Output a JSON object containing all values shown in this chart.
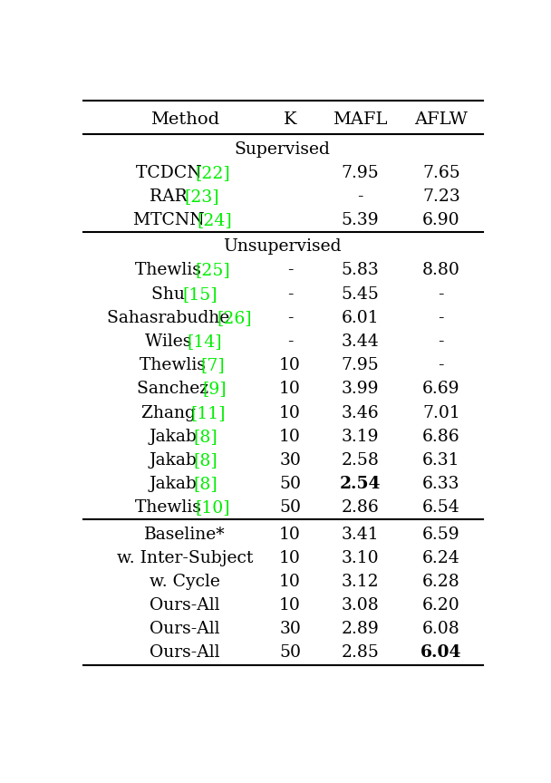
{
  "bg_color": "#ffffff",
  "header": [
    "Method",
    "K",
    "MAFL",
    "AFLW"
  ],
  "sections": [
    {
      "label": "Supervised",
      "rows": [
        {
          "method_parts": [
            {
              "text": "TCDCN ",
              "color": "black"
            },
            {
              "text": "[22]",
              "color": "#00ee00"
            }
          ],
          "K": "",
          "MAFL": "7.95",
          "AFLW": "7.65",
          "MAFL_bold": false,
          "AFLW_bold": false
        },
        {
          "method_parts": [
            {
              "text": "RAR ",
              "color": "black"
            },
            {
              "text": "[23]",
              "color": "#00ee00"
            }
          ],
          "K": "",
          "MAFL": "-",
          "AFLW": "7.23",
          "MAFL_bold": false,
          "AFLW_bold": false
        },
        {
          "method_parts": [
            {
              "text": "MTCNN ",
              "color": "black"
            },
            {
              "text": "[24]",
              "color": "#00ee00"
            }
          ],
          "K": "",
          "MAFL": "5.39",
          "AFLW": "6.90",
          "MAFL_bold": false,
          "AFLW_bold": false
        }
      ]
    },
    {
      "label": "Unsupervised",
      "rows": [
        {
          "method_parts": [
            {
              "text": "Thewlis ",
              "color": "black"
            },
            {
              "text": "[25]",
              "color": "#00ee00"
            }
          ],
          "K": "-",
          "MAFL": "5.83",
          "AFLW": "8.80",
          "MAFL_bold": false,
          "AFLW_bold": false
        },
        {
          "method_parts": [
            {
              "text": "Shu ",
              "color": "black"
            },
            {
              "text": "[15]",
              "color": "#00ee00"
            }
          ],
          "K": "-",
          "MAFL": "5.45",
          "AFLW": "-",
          "MAFL_bold": false,
          "AFLW_bold": false
        },
        {
          "method_parts": [
            {
              "text": "Sahasrabudhe ",
              "color": "black"
            },
            {
              "text": "[26]",
              "color": "#00ee00"
            }
          ],
          "K": "-",
          "MAFL": "6.01",
          "AFLW": "-",
          "MAFL_bold": false,
          "AFLW_bold": false
        },
        {
          "method_parts": [
            {
              "text": "Wiles ",
              "color": "black"
            },
            {
              "text": "[14]",
              "color": "#00ee00"
            }
          ],
          "K": "-",
          "MAFL": "3.44",
          "AFLW": "-",
          "MAFL_bold": false,
          "AFLW_bold": false
        },
        {
          "method_parts": [
            {
              "text": "Thewlis ",
              "color": "black"
            },
            {
              "text": "[7]",
              "color": "#00ee00"
            }
          ],
          "K": "10",
          "MAFL": "7.95",
          "AFLW": "-",
          "MAFL_bold": false,
          "AFLW_bold": false
        },
        {
          "method_parts": [
            {
              "text": "Sanchez ",
              "color": "black"
            },
            {
              "text": "[9]",
              "color": "#00ee00"
            }
          ],
          "K": "10",
          "MAFL": "3.99",
          "AFLW": "6.69",
          "MAFL_bold": false,
          "AFLW_bold": false
        },
        {
          "method_parts": [
            {
              "text": "Zhang ",
              "color": "black"
            },
            {
              "text": "[11]",
              "color": "#00ee00"
            }
          ],
          "K": "10",
          "MAFL": "3.46",
          "AFLW": "7.01",
          "MAFL_bold": false,
          "AFLW_bold": false
        },
        {
          "method_parts": [
            {
              "text": "Jakab ",
              "color": "black"
            },
            {
              "text": "[8]",
              "color": "#00ee00"
            }
          ],
          "K": "10",
          "MAFL": "3.19",
          "AFLW": "6.86",
          "MAFL_bold": false,
          "AFLW_bold": false
        },
        {
          "method_parts": [
            {
              "text": "Jakab ",
              "color": "black"
            },
            {
              "text": "[8]",
              "color": "#00ee00"
            }
          ],
          "K": "30",
          "MAFL": "2.58",
          "AFLW": "6.31",
          "MAFL_bold": false,
          "AFLW_bold": false
        },
        {
          "method_parts": [
            {
              "text": "Jakab ",
              "color": "black"
            },
            {
              "text": "[8]",
              "color": "#00ee00"
            }
          ],
          "K": "50",
          "MAFL": "2.54",
          "AFLW": "6.33",
          "MAFL_bold": true,
          "AFLW_bold": false
        },
        {
          "method_parts": [
            {
              "text": "Thewlis ",
              "color": "black"
            },
            {
              "text": "[10]",
              "color": "#00ee00"
            }
          ],
          "K": "50",
          "MAFL": "2.86",
          "AFLW": "6.54",
          "MAFL_bold": false,
          "AFLW_bold": false
        }
      ]
    },
    {
      "label": null,
      "rows": [
        {
          "method_parts": [
            {
              "text": "Baseline*",
              "color": "black"
            }
          ],
          "K": "10",
          "MAFL": "3.41",
          "AFLW": "6.59",
          "MAFL_bold": false,
          "AFLW_bold": false
        },
        {
          "method_parts": [
            {
              "text": "w. Inter-Subject",
              "color": "black"
            }
          ],
          "K": "10",
          "MAFL": "3.10",
          "AFLW": "6.24",
          "MAFL_bold": false,
          "AFLW_bold": false
        },
        {
          "method_parts": [
            {
              "text": "w. Cycle",
              "color": "black"
            }
          ],
          "K": "10",
          "MAFL": "3.12",
          "AFLW": "6.28",
          "MAFL_bold": false,
          "AFLW_bold": false
        },
        {
          "method_parts": [
            {
              "text": "Ours-All",
              "color": "black"
            }
          ],
          "K": "10",
          "MAFL": "3.08",
          "AFLW": "6.20",
          "MAFL_bold": false,
          "AFLW_bold": false
        },
        {
          "method_parts": [
            {
              "text": "Ours-All",
              "color": "black"
            }
          ],
          "K": "30",
          "MAFL": "2.89",
          "AFLW": "6.08",
          "MAFL_bold": false,
          "AFLW_bold": false
        },
        {
          "method_parts": [
            {
              "text": "Ours-All",
              "color": "black"
            }
          ],
          "K": "50",
          "MAFL": "2.85",
          "AFLW": "6.04",
          "MAFL_bold": false,
          "AFLW_bold": true
        }
      ]
    }
  ],
  "row_fontsize": 13.5,
  "header_fontsize": 14,
  "section_fontsize": 13.5,
  "line_color": "black"
}
